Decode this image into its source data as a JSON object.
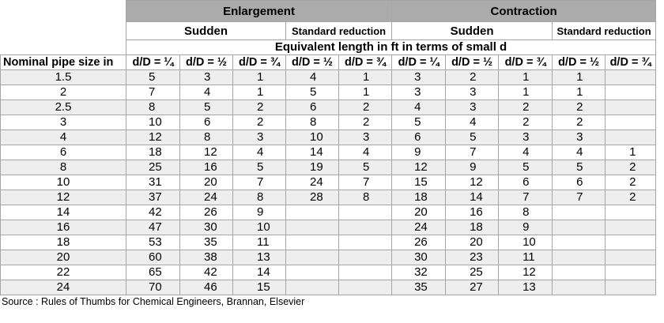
{
  "groups": {
    "enlargement": "Enlargement",
    "contraction": "Contraction"
  },
  "subgroups": {
    "enl_sudden": "Sudden",
    "enl_standard": "Standard reduction",
    "con_sudden": "Sudden",
    "con_standard": "Standard reduction"
  },
  "equivalent_length_label": "Equivalent length in ft in terms of small d",
  "column_headers": [
    "Nominal pipe size in",
    "d/D = ¼",
    "d/D = ½",
    "d/D = ¾",
    "d/D = ½",
    "d/D = ¾",
    "d/D = ¼",
    "d/D = ½",
    "d/D = ¾",
    "d/D = ½",
    "d/D = ¾"
  ],
  "rows": [
    [
      "1.5",
      "5",
      "3",
      "1",
      "4",
      "1",
      "3",
      "2",
      "1",
      "1",
      ""
    ],
    [
      "2",
      "7",
      "4",
      "1",
      "5",
      "1",
      "3",
      "3",
      "1",
      "1",
      ""
    ],
    [
      "2.5",
      "8",
      "5",
      "2",
      "6",
      "2",
      "4",
      "3",
      "2",
      "2",
      ""
    ],
    [
      "3",
      "10",
      "6",
      "2",
      "8",
      "2",
      "5",
      "4",
      "2",
      "2",
      ""
    ],
    [
      "4",
      "12",
      "8",
      "3",
      "10",
      "3",
      "6",
      "5",
      "3",
      "3",
      ""
    ],
    [
      "6",
      "18",
      "12",
      "4",
      "14",
      "4",
      "9",
      "7",
      "4",
      "4",
      "1"
    ],
    [
      "8",
      "25",
      "16",
      "5",
      "19",
      "5",
      "12",
      "9",
      "5",
      "5",
      "2"
    ],
    [
      "10",
      "31",
      "20",
      "7",
      "24",
      "7",
      "15",
      "12",
      "6",
      "6",
      "2"
    ],
    [
      "12",
      "37",
      "24",
      "8",
      "28",
      "8",
      "18",
      "14",
      "7",
      "7",
      "2"
    ],
    [
      "14",
      "42",
      "26",
      "9",
      "",
      "",
      "20",
      "16",
      "8",
      "",
      ""
    ],
    [
      "16",
      "47",
      "30",
      "10",
      "",
      "",
      "24",
      "18",
      "9",
      "",
      ""
    ],
    [
      "18",
      "53",
      "35",
      "11",
      "",
      "",
      "26",
      "20",
      "10",
      "",
      ""
    ],
    [
      "20",
      "60",
      "38",
      "13",
      "",
      "",
      "30",
      "23",
      "11",
      "",
      ""
    ],
    [
      "22",
      "65",
      "42",
      "14",
      "",
      "",
      "32",
      "25",
      "12",
      "",
      ""
    ],
    [
      "24",
      "70",
      "46",
      "15",
      "",
      "",
      "35",
      "27",
      "13",
      "",
      ""
    ]
  ],
  "source": "Source : Rules of Thumbs for Chemical Engineers, Brannan, Elsevier"
}
